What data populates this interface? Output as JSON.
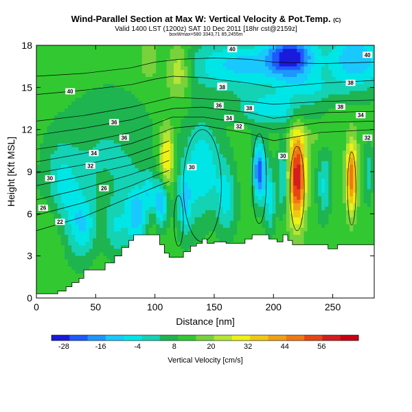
{
  "chart_data": {
    "type": "heatmap",
    "title": "Wind-Parallel Section at Max W: Vertical Velocity & Pot.Temp.",
    "title_mark": "(C)",
    "subtitle": "Valid 1400 LST (1200z) SAT 10 Dec 2011 [18hr cst@2159z]",
    "subtitle2": "boxWmax=580 3343,71 85,2455m",
    "xlabel": "Distance [nm]",
    "ylabel": "Height [Kft MSL]",
    "xlim": [
      0,
      285
    ],
    "ylim": [
      0,
      18
    ],
    "x_ticks": [
      "0",
      "50",
      "100",
      "150",
      "200",
      "250"
    ],
    "y_ticks": [
      "0",
      "3",
      "6",
      "9",
      "12",
      "15",
      "18"
    ],
    "colorbar": {
      "label": "Vertical Velocity [cm/s]",
      "ticks": [
        "-28",
        "-16",
        "-4",
        "8",
        "20",
        "32",
        "44",
        "56"
      ],
      "range": [
        -32,
        68
      ],
      "colors": [
        "#1a1adc",
        "#1e5aff",
        "#1e96ff",
        "#19c8ff",
        "#00e6e6",
        "#14d2b4",
        "#1eb450",
        "#32c832",
        "#78d23c",
        "#b4e632",
        "#f0f014",
        "#f0c814",
        "#f0a014",
        "#f07814",
        "#e64614",
        "#d21e1e",
        "#c80014"
      ]
    },
    "terrain": [
      [
        0,
        0.3
      ],
      [
        10,
        0.3
      ],
      [
        10,
        0.3
      ],
      [
        18,
        0.3
      ],
      [
        18,
        0.5
      ],
      [
        25,
        0.5
      ],
      [
        25,
        0.8
      ],
      [
        30,
        0.8
      ],
      [
        30,
        1.1
      ],
      [
        36,
        1.1
      ],
      [
        36,
        1.4
      ],
      [
        40,
        1.4
      ],
      [
        40,
        2.0
      ],
      [
        58,
        2.0
      ],
      [
        58,
        2.5
      ],
      [
        66,
        2.5
      ],
      [
        66,
        3.0
      ],
      [
        72,
        3.0
      ],
      [
        72,
        3.6
      ],
      [
        78,
        3.6
      ],
      [
        78,
        4.1
      ],
      [
        82,
        4.1
      ],
      [
        82,
        4.5
      ],
      [
        104,
        4.5
      ],
      [
        104,
        3.8
      ],
      [
        108,
        3.8
      ],
      [
        108,
        3.2
      ],
      [
        112,
        3.2
      ],
      [
        112,
        2.9
      ],
      [
        124,
        2.9
      ],
      [
        124,
        3.3
      ],
      [
        130,
        3.3
      ],
      [
        130,
        3.7
      ],
      [
        135,
        3.7
      ],
      [
        135,
        3.9
      ],
      [
        140,
        3.9
      ],
      [
        140,
        4.2
      ],
      [
        144,
        4.2
      ],
      [
        144,
        3.9
      ],
      [
        150,
        3.9
      ],
      [
        150,
        4.0
      ],
      [
        160,
        4.0
      ],
      [
        160,
        3.9
      ],
      [
        176,
        3.9
      ],
      [
        176,
        4.2
      ],
      [
        182,
        4.2
      ],
      [
        182,
        4.5
      ],
      [
        196,
        4.5
      ],
      [
        196,
        4.2
      ],
      [
        203,
        4.2
      ],
      [
        203,
        4.0
      ],
      [
        208,
        4.0
      ],
      [
        208,
        4.5
      ],
      [
        212,
        4.5
      ],
      [
        212,
        4.1
      ],
      [
        216,
        4.1
      ],
      [
        216,
        3.8
      ],
      [
        246,
        3.8
      ],
      [
        246,
        3.5
      ],
      [
        254,
        3.5
      ],
      [
        254,
        3.8
      ],
      [
        285,
        3.8
      ]
    ],
    "w_field": {
      "background": 12,
      "cells": [
        {
          "x": 170,
          "y": 16.6,
          "sx": 45,
          "sy": 1.8,
          "v": -10
        },
        {
          "x": 215,
          "y": 17.2,
          "sx": 20,
          "sy": 1.5,
          "v": -25
        },
        {
          "x": 270,
          "y": 17.0,
          "sx": 25,
          "sy": 2.2,
          "v": -14
        },
        {
          "x": 200,
          "y": 13.5,
          "sx": 30,
          "sy": 1.2,
          "v": -6
        },
        {
          "x": 120,
          "y": 16.2,
          "sx": 10,
          "sy": 1.8,
          "v": 30
        },
        {
          "x": 95,
          "y": 17.0,
          "sx": 8,
          "sy": 1.5,
          "v": 22
        },
        {
          "x": 230,
          "y": 15.0,
          "sx": 22,
          "sy": 1.0,
          "v": 0
        },
        {
          "x": 110,
          "y": 10.0,
          "sx": 6,
          "sy": 2.2,
          "v": 36
        },
        {
          "x": 105,
          "y": 6.8,
          "sx": 6,
          "sy": 1.6,
          "v": -14
        },
        {
          "x": 95,
          "y": 7.5,
          "sx": 5,
          "sy": 1.4,
          "v": -2
        },
        {
          "x": 140,
          "y": 9.2,
          "sx": 16,
          "sy": 3.5,
          "v": -8
        },
        {
          "x": 125,
          "y": 6.8,
          "sx": 6,
          "sy": 2.2,
          "v": -5
        },
        {
          "x": 160,
          "y": 7.0,
          "sx": 8,
          "sy": 2.5,
          "v": -4
        },
        {
          "x": 188,
          "y": 9.0,
          "sx": 5,
          "sy": 2.0,
          "v": -24
        },
        {
          "x": 197,
          "y": 7.0,
          "sx": 5,
          "sy": 2.5,
          "v": -6
        },
        {
          "x": 220,
          "y": 8.6,
          "sx": 7,
          "sy": 3.2,
          "v": 62
        },
        {
          "x": 208,
          "y": 8.5,
          "sx": 4,
          "sy": 2.5,
          "v": -6
        },
        {
          "x": 243,
          "y": 8.0,
          "sx": 6,
          "sy": 2.5,
          "v": -4
        },
        {
          "x": 266,
          "y": 8.6,
          "sx": 4.5,
          "sy": 2.5,
          "v": 50
        },
        {
          "x": 280,
          "y": 9.0,
          "sx": 4,
          "sy": 2.0,
          "v": 0
        },
        {
          "x": 235,
          "y": 11.5,
          "sx": 15,
          "sy": 0.8,
          "v": 16
        },
        {
          "x": 60,
          "y": 9.5,
          "sx": 40,
          "sy": 5.0,
          "v": 2
        },
        {
          "x": 40,
          "y": 5.0,
          "sx": 12,
          "sy": 2.0,
          "v": 0
        },
        {
          "x": 65,
          "y": 5.0,
          "sx": 10,
          "sy": 2.0,
          "v": -2
        },
        {
          "x": 85,
          "y": 6.0,
          "sx": 8,
          "sy": 1.8,
          "v": -4
        },
        {
          "x": 20,
          "y": 8.0,
          "sx": 14,
          "sy": 3.0,
          "v": -2
        }
      ]
    },
    "theta_contours": [
      {
        "label": "22",
        "x": [
          0,
          40,
          80,
          100,
          112
        ],
        "y": [
          4.8,
          5.8,
          7.2,
          7.9,
          8.3
        ]
      },
      {
        "label": "26",
        "x": [
          0,
          40,
          80,
          100,
          112
        ],
        "y": [
          5.9,
          6.8,
          8.0,
          8.7,
          9.1
        ]
      },
      {
        "label": "26",
        "x": [
          0,
          40,
          80,
          100,
          112
        ],
        "y": [
          7.0,
          7.8,
          8.8,
          9.4,
          9.8
        ]
      },
      {
        "label": "30",
        "x": [
          0,
          40,
          80,
          100,
          112
        ],
        "y": [
          8.0,
          8.7,
          9.5,
          10.1,
          10.5
        ]
      },
      {
        "label": "32",
        "x": [
          0,
          40,
          80,
          100,
          112
        ],
        "y": [
          8.9,
          9.5,
          10.2,
          10.8,
          11.2
        ]
      },
      {
        "label": "34",
        "x": [
          0,
          40,
          80,
          100,
          115,
          140,
          180,
          200,
          240,
          285
        ],
        "y": [
          9.7,
          10.3,
          11.0,
          11.6,
          12.1,
          12.3,
          11.7,
          11.2,
          11.8,
          12.0
        ]
      },
      {
        "label": "36",
        "x": [
          0,
          40,
          80,
          100,
          115,
          140,
          180,
          200,
          240,
          285
        ],
        "y": [
          10.6,
          11.1,
          11.8,
          12.4,
          12.9,
          12.9,
          12.4,
          12.0,
          12.5,
          12.6
        ]
      },
      {
        "label": "38",
        "x": [
          0,
          40,
          80,
          100,
          115,
          140,
          180,
          200,
          240,
          285
        ],
        "y": [
          11.6,
          12.1,
          12.7,
          13.2,
          13.5,
          13.6,
          13.2,
          12.8,
          13.2,
          13.3
        ]
      },
      {
        "label": "38",
        "x": [
          0,
          40,
          80,
          100,
          115,
          140,
          180,
          200,
          240,
          285
        ],
        "y": [
          12.6,
          13.0,
          13.6,
          14.0,
          14.3,
          14.2,
          14.0,
          13.8,
          14.0,
          14.1
        ]
      },
      {
        "label": "40",
        "x": [
          0,
          40,
          80,
          100,
          115,
          140,
          180,
          200,
          240,
          285
        ],
        "y": [
          14.5,
          14.8,
          15.2,
          15.6,
          15.8,
          15.7,
          15.3,
          15.0,
          15.3,
          15.5
        ]
      },
      {
        "label": "40",
        "x": [
          0,
          40,
          80,
          100,
          120,
          150,
          180,
          200,
          240,
          285
        ],
        "y": [
          15.8,
          16.0,
          16.4,
          16.8,
          17.0,
          17.1,
          17.0,
          16.8,
          16.7,
          16.8
        ]
      }
    ],
    "contour_labels": [
      {
        "text": "22",
        "x": 7,
        "y": 5.4
      },
      {
        "text": "26",
        "x": 2,
        "y": 6.4
      },
      {
        "text": "26",
        "x": 20,
        "y": 7.8
      },
      {
        "text": "30",
        "x": 4,
        "y": 8.5
      },
      {
        "text": "32",
        "x": 16,
        "y": 9.4
      },
      {
        "text": "34",
        "x": 17,
        "y": 10.3
      },
      {
        "text": "36",
        "x": 26,
        "y": 11.4
      },
      {
        "text": "36",
        "x": 23,
        "y": 12.5
      },
      {
        "text": "30",
        "x": 46,
        "y": 9.3
      },
      {
        "text": "40",
        "x": 10,
        "y": 14.7
      },
      {
        "text": "38",
        "x": 55,
        "y": 15.1
      },
      {
        "text": "40",
        "x": 58,
        "y": 17.7
      },
      {
        "text": "38",
        "x": 55,
        "y": 15.0
      },
      {
        "text": "36",
        "x": 54,
        "y": 13.7
      },
      {
        "text": "38",
        "x": 63,
        "y": 13.5
      },
      {
        "text": "34",
        "x": 57,
        "y": 12.8
      },
      {
        "text": "32",
        "x": 60,
        "y": 12.2
      },
      {
        "text": "30",
        "x": 73,
        "y": 10.1
      },
      {
        "text": "38",
        "x": 90,
        "y": 13.6
      },
      {
        "text": "34",
        "x": 96,
        "y": 13.0
      },
      {
        "text": "32",
        "x": 98,
        "y": 11.4
      },
      {
        "text": "40",
        "x": 98,
        "y": 17.3
      },
      {
        "text": "38",
        "x": 93,
        "y": 15.3
      }
    ]
  }
}
